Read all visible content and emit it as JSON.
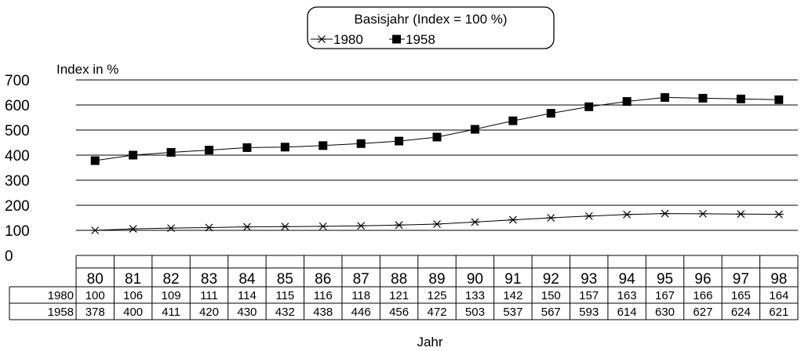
{
  "chart_data": {
    "type": "line",
    "title": "",
    "legend": {
      "title": "Basisjahr (Index = 100 %)",
      "placement": "top-center",
      "entries": [
        "1980",
        "1958"
      ]
    },
    "ylabel": "Index in %",
    "xlabel": "Jahr",
    "ylim": [
      0,
      700
    ],
    "yticks": [
      0,
      100,
      200,
      300,
      400,
      500,
      600,
      700
    ],
    "grid": true,
    "categories": [
      "80",
      "81",
      "82",
      "83",
      "84",
      "85",
      "86",
      "87",
      "88",
      "89",
      "90",
      "91",
      "92",
      "93",
      "94",
      "95",
      "96",
      "97",
      "98"
    ],
    "series": [
      {
        "name": "1980",
        "marker": "star",
        "values": [
          100,
          106,
          109,
          111,
          114,
          115,
          116,
          118,
          121,
          125,
          133,
          142,
          150,
          157,
          163,
          167,
          166,
          165,
          164
        ]
      },
      {
        "name": "1958",
        "marker": "square",
        "values": [
          378,
          400,
          411,
          420,
          430,
          432,
          438,
          446,
          456,
          472,
          503,
          537,
          567,
          593,
          614,
          630,
          627,
          624,
          621
        ]
      }
    ],
    "table": {
      "rows": [
        {
          "label": "1980",
          "series_index": 0
        },
        {
          "label": "1958",
          "series_index": 1
        }
      ]
    }
  }
}
